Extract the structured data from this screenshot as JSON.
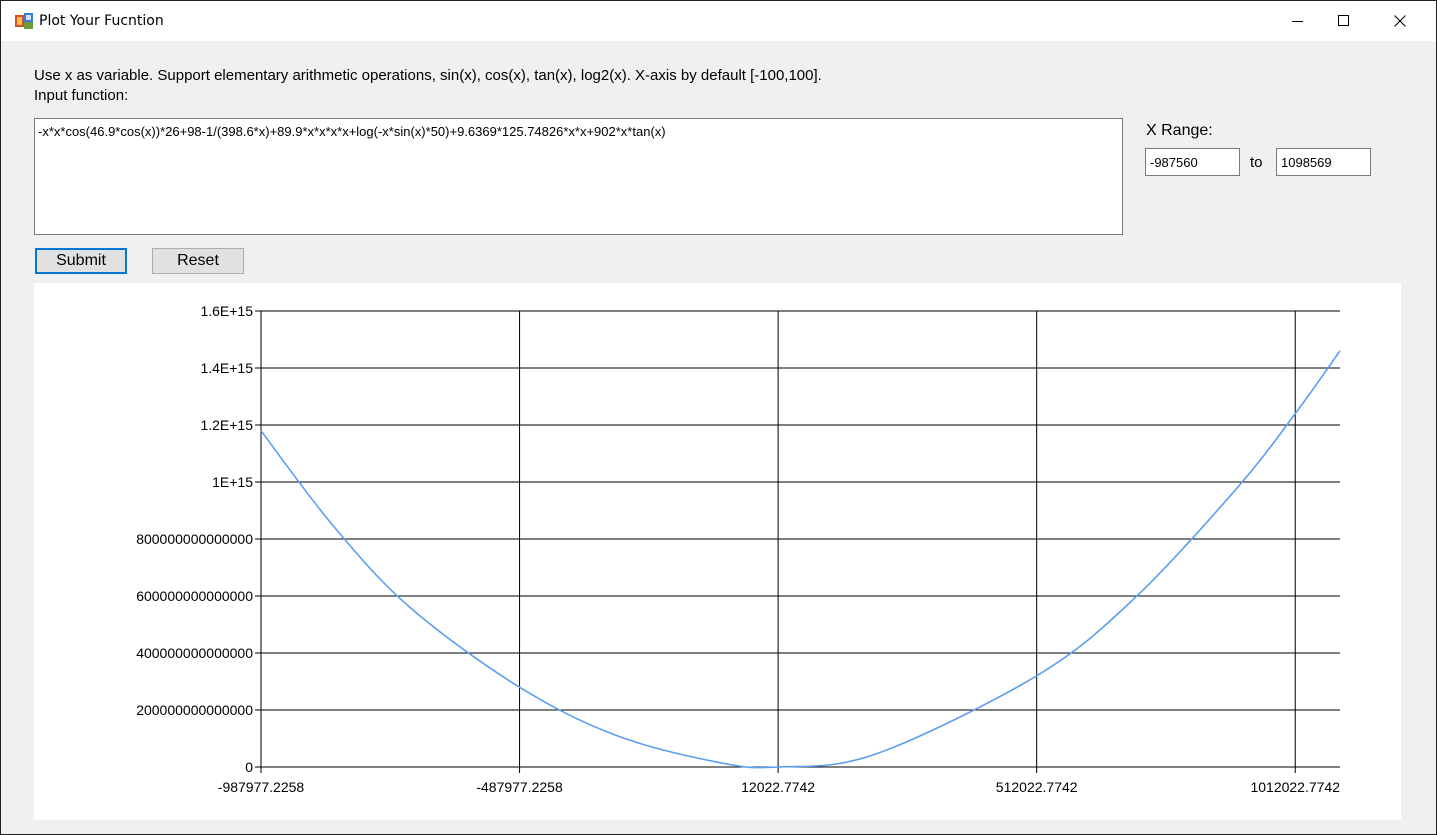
{
  "window": {
    "title": "Plot Your Fucntion",
    "controls": {
      "minimize": "minimize-icon",
      "maximize": "maximize-icon",
      "close": "close-icon"
    }
  },
  "instructions": {
    "line1": "Use x as variable. Support elementary arithmetic operations, sin(x), cos(x), tan(x), log2(x). X-axis by default [-100,100].",
    "line2": "Input function:"
  },
  "function_input": {
    "value": "-x*x*cos(46.9*cos(x))*26+98-1/(398.6*x)+89.9*x*x*x*x+log(-x*sin(x)*50)+9.6369*125.74826*x*x+902*x*tan(x)"
  },
  "x_range": {
    "label": "X Range:",
    "min": "-987560",
    "to_label": "to",
    "max": "1098569"
  },
  "buttons": {
    "submit": "Submit",
    "reset": "Reset"
  },
  "colors": {
    "line": "#5a9ff0",
    "grid": "#000000",
    "focus_border": "#0078d7"
  },
  "chart_data": {
    "type": "line",
    "title": "",
    "xlabel": "",
    "ylabel": "",
    "xlim": [
      -987977.2258,
      1098569
    ],
    "ylim": [
      0,
      1600000000000000
    ],
    "grid": true,
    "x_ticks": [
      -987977.2258,
      -487977.2258,
      12022.7742,
      512022.7742,
      1012022.7742
    ],
    "x_tick_labels": [
      "-987977.2258",
      "-487977.2258",
      "12022.7742",
      "512022.7742",
      "1012022.7742"
    ],
    "y_ticks": [
      0,
      200000000000000,
      400000000000000,
      600000000000000,
      800000000000000,
      1000000000000000,
      1200000000000000,
      1400000000000000,
      1600000000000000
    ],
    "y_tick_labels": [
      "0",
      "200000000000000",
      "400000000000000",
      "600000000000000",
      "800000000000000",
      "1E+15",
      "1.2E+15",
      "1.4E+15",
      "1.6E+15"
    ],
    "series": [
      {
        "x": [
          -987977.2258,
          -850000,
          -700000,
          -487977.2258,
          -300000,
          -100000,
          12022.7742,
          200000,
          512022.7742,
          700000,
          900000,
          1012022.7742,
          1098569
        ],
        "y": [
          1180000000000000,
          850000000000000,
          560000000000000,
          280000000000000,
          110000000000000,
          15000000000000,
          0,
          45000000000000,
          320000000000000,
          590000000000000,
          980000000000000,
          1240000000000000,
          1460000000000000
        ]
      }
    ]
  }
}
